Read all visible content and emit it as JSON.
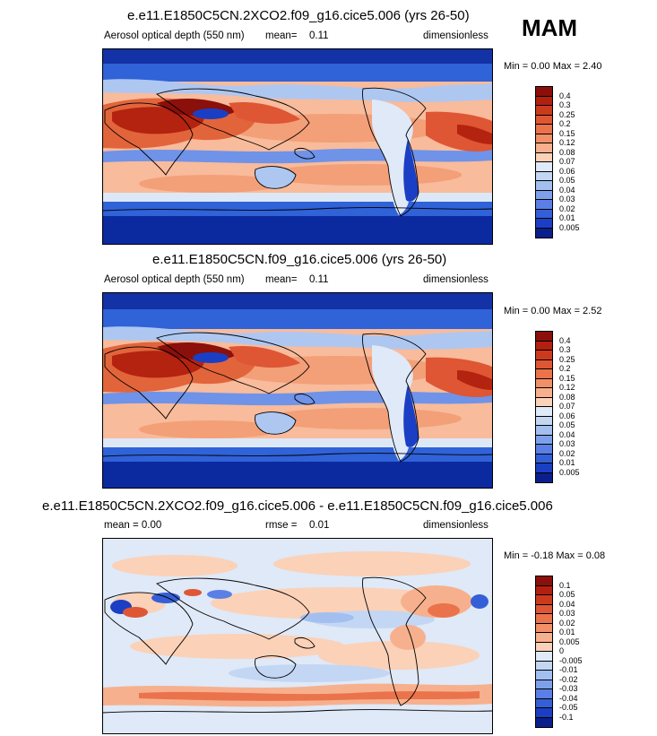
{
  "season": "MAM",
  "panels": [
    {
      "title": "e.e11.E1850C5CN.2XCO2.f09_g16.cice5.006 (yrs 26-50)",
      "left_label": "Aerosol optical depth (550 nm)",
      "stat_label": "mean=",
      "stat_value": "0.11",
      "units": "dimensionless",
      "minmax": "Min =   0.00 Max =   2.40"
    },
    {
      "title": "e.e11.E1850C5CN.f09_g16.cice5.006 (yrs 26-50)",
      "left_label": "Aerosol optical depth (550 nm)",
      "stat_label": "mean=",
      "stat_value": "0.11",
      "units": "dimensionless",
      "minmax": "Min =   0.00 Max =   2.52"
    },
    {
      "title": "e.e11.E1850C5CN.2XCO2.f09_g16.cice5.006 - e.e11.E1850C5CN.f09_g16.cice5.006",
      "left_label": "mean =   0.00",
      "stat_label": "rmse =",
      "stat_value": "0.01",
      "units": "dimensionless",
      "minmax": "Min =  -0.18 Max =   0.08"
    }
  ],
  "colorbar_abs": {
    "labels": [
      "0.4",
      "0.3",
      "0.25",
      "0.2",
      "0.15",
      "0.12",
      "0.08",
      "0.07",
      "0.06",
      "0.05",
      "0.04",
      "0.03",
      "0.02",
      "0.01",
      "0.005"
    ],
    "colors": [
      "#8b0f0a",
      "#b3200f",
      "#cc3a1e",
      "#de5634",
      "#ea734c",
      "#f19067",
      "#f7b08d",
      "#fbd1b8",
      "#dfe9f7",
      "#c3d6f3",
      "#a3bff0",
      "#7ea0eb",
      "#5a80e6",
      "#355fd6",
      "#1a3fc4",
      "#0a1f8c"
    ]
  },
  "colorbar_diff": {
    "labels": [
      "0.1",
      "0.05",
      "0.04",
      "0.03",
      "0.02",
      "0.01",
      "0.005",
      "0",
      "-0.005",
      "-0.01",
      "-0.02",
      "-0.03",
      "-0.04",
      "-0.05",
      "-0.1"
    ],
    "colors": [
      "#8b0f0a",
      "#b3200f",
      "#cc3a1e",
      "#de5634",
      "#ea734c",
      "#f19067",
      "#f7b08d",
      "#fbd1b8",
      "#dfe9f7",
      "#c3d6f3",
      "#a3bff0",
      "#7ea0eb",
      "#5a80e6",
      "#355fd6",
      "#1a3fc4",
      "#0a1f8c"
    ]
  }
}
